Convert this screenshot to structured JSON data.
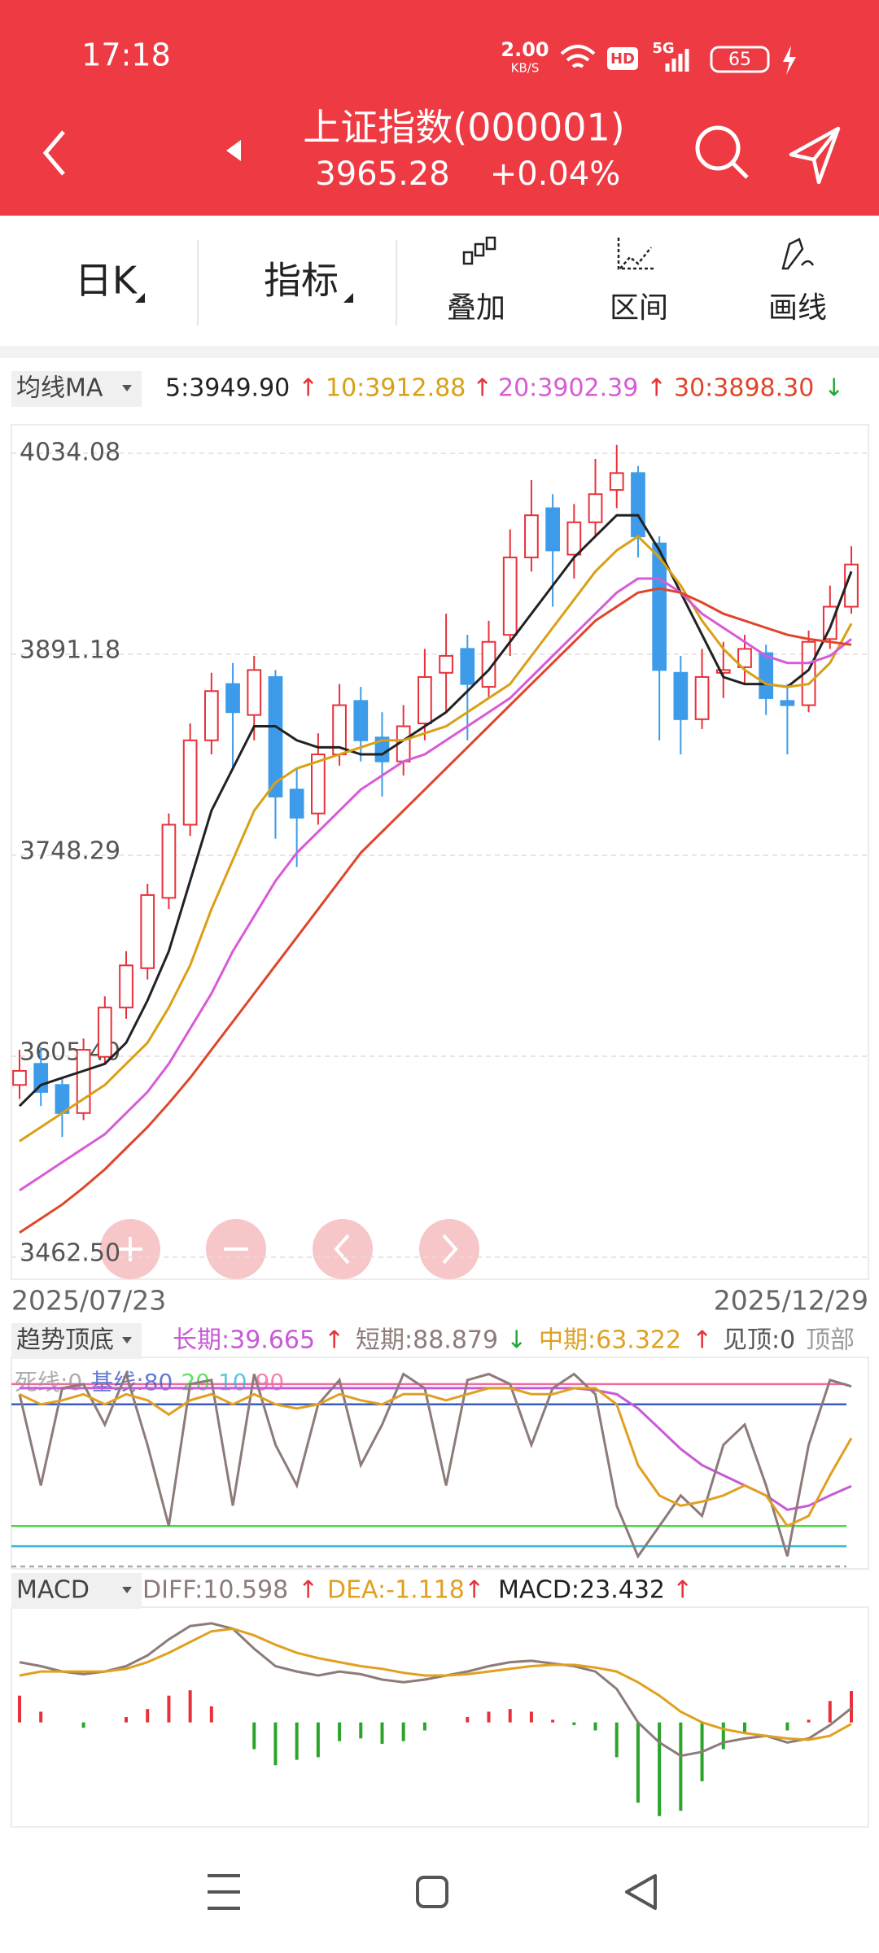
{
  "header": {
    "time": "17:18",
    "net_speed": "2.00",
    "net_unit": "KB/S",
    "hd": "HD",
    "network": "5G",
    "battery": "65",
    "title": "上证指数(000001)",
    "price": "3965.28",
    "change": "+0.04%"
  },
  "toolbar": {
    "tabs": [
      "日K",
      "指标",
      "叠加",
      "区间",
      "画线"
    ]
  },
  "chart_data": [
    {
      "type": "candlestick",
      "legend_title": "均线MA",
      "x_start": "2025/07/23",
      "x_end": "2025/12/29",
      "ylim": [
        3462.5,
        4034.08
      ],
      "yticks": [
        4034.08,
        3891.18,
        3748.29,
        {
          "value": 3605.4,
          "label": "3605.40"
        },
        {
          "value": 3462.5,
          "label": "3462.50"
        }
      ],
      "grid": true,
      "up_color": "#e8313a",
      "down_color": "#3d9be9",
      "candles": [
        [
          3585,
          3595,
          3610,
          3575
        ],
        [
          3600,
          3580,
          3612,
          3570
        ],
        [
          3585,
          3565,
          3590,
          3548
        ],
        [
          3565,
          3610,
          3618,
          3560
        ],
        [
          3605,
          3640,
          3648,
          3600
        ],
        [
          3640,
          3670,
          3680,
          3632
        ],
        [
          3668,
          3720,
          3728,
          3660
        ],
        [
          3718,
          3770,
          3778,
          3710
        ],
        [
          3770,
          3830,
          3842,
          3762
        ],
        [
          3830,
          3865,
          3878,
          3820
        ],
        [
          3870,
          3850,
          3885,
          3810
        ],
        [
          3848,
          3880,
          3890,
          3830
        ],
        [
          3875,
          3790,
          3880,
          3760
        ],
        [
          3795,
          3775,
          3810,
          3740
        ],
        [
          3778,
          3820,
          3835,
          3770
        ],
        [
          3820,
          3855,
          3870,
          3812
        ],
        [
          3858,
          3830,
          3868,
          3815
        ],
        [
          3832,
          3815,
          3850,
          3790
        ],
        [
          3815,
          3840,
          3855,
          3805
        ],
        [
          3842,
          3875,
          3895,
          3830
        ],
        [
          3878,
          3890,
          3920,
          3850
        ],
        [
          3895,
          3870,
          3905,
          3830
        ],
        [
          3868,
          3900,
          3915,
          3860
        ],
        [
          3905,
          3960,
          3980,
          3890
        ],
        [
          3960,
          3990,
          4015,
          3950
        ],
        [
          3995,
          3965,
          4005,
          3925
        ],
        [
          3962,
          3985,
          3998,
          3945
        ],
        [
          3985,
          4005,
          4030,
          3975
        ],
        [
          4008,
          4020,
          4040,
          3995
        ],
        [
          4020,
          3975,
          4025,
          3960
        ],
        [
          3970,
          3880,
          3975,
          3830
        ],
        [
          3878,
          3845,
          3890,
          3820
        ],
        [
          3845,
          3875,
          3895,
          3838
        ],
        [
          3878,
          3880,
          3900,
          3860
        ],
        [
          3882,
          3895,
          3905,
          3870
        ],
        [
          3892,
          3860,
          3898,
          3848
        ],
        [
          3858,
          3855,
          3870,
          3820
        ],
        [
          3855,
          3900,
          3908,
          3850
        ],
        [
          3902,
          3925,
          3940,
          3895
        ],
        [
          3925,
          3955,
          3968,
          3920
        ]
      ],
      "series": [
        {
          "name": "5:3949.90",
          "trend": "↑",
          "trend_color": "#e8313a",
          "color": "#222222",
          "values": [
            3570,
            3585,
            3590,
            3595,
            3600,
            3615,
            3645,
            3680,
            3730,
            3780,
            3810,
            3840,
            3840,
            3830,
            3825,
            3825,
            3820,
            3820,
            3830,
            3840,
            3850,
            3865,
            3880,
            3900,
            3920,
            3940,
            3960,
            3975,
            3990,
            3990,
            3965,
            3935,
            3905,
            3875,
            3870,
            3870,
            3868,
            3880,
            3910,
            3950
          ]
        },
        {
          "name": "10:3912.88",
          "trend": "↑",
          "trend_color": "#e8313a",
          "color": "#d9a016",
          "values": [
            3545,
            3555,
            3565,
            3575,
            3585,
            3600,
            3615,
            3640,
            3670,
            3710,
            3745,
            3780,
            3800,
            3810,
            3815,
            3820,
            3825,
            3830,
            3830,
            3835,
            3840,
            3850,
            3860,
            3870,
            3890,
            3910,
            3930,
            3950,
            3965,
            3975,
            3960,
            3940,
            3915,
            3895,
            3880,
            3870,
            3868,
            3870,
            3885,
            3913
          ]
        },
        {
          "name": "20:3902.39",
          "trend": "↑",
          "trend_color": "#e8313a",
          "color": "#d85ad8",
          "values": [
            3510,
            3520,
            3530,
            3540,
            3550,
            3565,
            3580,
            3600,
            3625,
            3650,
            3680,
            3705,
            3730,
            3750,
            3765,
            3780,
            3795,
            3805,
            3815,
            3820,
            3830,
            3840,
            3850,
            3860,
            3875,
            3890,
            3905,
            3920,
            3935,
            3945,
            3945,
            3935,
            3920,
            3910,
            3900,
            3890,
            3885,
            3885,
            3890,
            3902
          ]
        },
        {
          "name": "30:3898.30",
          "trend": "↓",
          "trend_color": "#22a83a",
          "color": "#e0452b",
          "values": [
            3480,
            3490,
            3500,
            3512,
            3525,
            3540,
            3555,
            3572,
            3590,
            3610,
            3630,
            3650,
            3670,
            3690,
            3710,
            3730,
            3750,
            3765,
            3780,
            3795,
            3810,
            3825,
            3840,
            3855,
            3870,
            3885,
            3900,
            3915,
            3925,
            3935,
            3938,
            3935,
            3928,
            3920,
            3915,
            3910,
            3905,
            3902,
            3900,
            3898
          ]
        }
      ]
    },
    {
      "type": "line",
      "legend_title": "趋势顶底",
      "ylim": [
        0,
        100
      ],
      "series": [
        {
          "name": "长期:39.665",
          "trend": "↑",
          "trend_color": "#e8313a",
          "color": "#c75ad6",
          "values": [
            88,
            88,
            88,
            88,
            88,
            88,
            88,
            88,
            88,
            88,
            88,
            88,
            88,
            88,
            88,
            88,
            88,
            88,
            88,
            88,
            88,
            88,
            88,
            88,
            88,
            88,
            88,
            87,
            85,
            78,
            68,
            58,
            50,
            45,
            40,
            35,
            28,
            30,
            35,
            39.665
          ]
        },
        {
          "name": "短期:88.879",
          "trend": "↓",
          "trend_color": "#22a83a",
          "color": "#8c7b78",
          "values": [
            85,
            40,
            88,
            90,
            70,
            95,
            60,
            20,
            90,
            92,
            30,
            95,
            60,
            40,
            80,
            92,
            50,
            70,
            95,
            88,
            40,
            92,
            95,
            90,
            60,
            88,
            95,
            85,
            30,
            5,
            20,
            35,
            25,
            60,
            70,
            40,
            5,
            60,
            92,
            88.879
          ]
        },
        {
          "name": "中期:63.322",
          "trend": "↑",
          "trend_color": "#e8313a",
          "color": "#e0a020",
          "values": [
            85,
            80,
            82,
            85,
            80,
            85,
            82,
            75,
            82,
            85,
            80,
            85,
            80,
            78,
            80,
            85,
            82,
            80,
            85,
            85,
            82,
            85,
            88,
            88,
            85,
            85,
            88,
            88,
            80,
            50,
            35,
            30,
            32,
            35,
            40,
            35,
            20,
            25,
            45,
            63.322
          ]
        }
      ],
      "extra_labels": [
        {
          "text": "见顶:0",
          "color": "#555555"
        },
        {
          "text": "顶部",
          "color": "#9a9a9a"
        }
      ],
      "ref_lines": [
        {
          "value": 90,
          "color": "#f06aa0"
        },
        {
          "value": 80,
          "color": "#3a5cc5"
        },
        {
          "value": 20,
          "color": "#3ddc3d"
        },
        {
          "value": 10,
          "color": "#36b7d8"
        },
        {
          "value": 0,
          "color": "#aaaaaa"
        }
      ],
      "ref_label": [
        {
          "text": "死线:0",
          "color": "#999999"
        },
        {
          "text": "基线:80",
          "color": "#3a5cc5"
        },
        {
          "text": "20",
          "color": "#3ddc3d"
        },
        {
          "text": "10",
          "color": "#36b7d8"
        },
        {
          "text": "90",
          "color": "#f06aa0"
        }
      ]
    },
    {
      "type": "macd",
      "legend_title": "MACD",
      "ylim": [
        -75,
        80
      ],
      "series": [
        {
          "name": "DIFF:10.598",
          "trend": "↑",
          "trend_color": "#e8313a",
          "color": "#8c7b78",
          "values": [
            45,
            42,
            38,
            36,
            38,
            42,
            50,
            62,
            72,
            74,
            70,
            55,
            42,
            38,
            35,
            38,
            36,
            32,
            30,
            32,
            35,
            38,
            42,
            45,
            46,
            44,
            42,
            38,
            25,
            0,
            -15,
            -25,
            -22,
            -15,
            -12,
            -10,
            -15,
            -12,
            -2,
            10.598
          ]
        },
        {
          "name": "DEA:-1.118",
          "trend": "↑",
          "trend_color": "#e8313a",
          "color": "#e0a020",
          "values": [
            35,
            38,
            38,
            38,
            38,
            40,
            45,
            52,
            60,
            68,
            70,
            65,
            58,
            52,
            48,
            45,
            42,
            40,
            37,
            35,
            35,
            36,
            38,
            40,
            42,
            43,
            43,
            41,
            38,
            30,
            20,
            8,
            0,
            -5,
            -8,
            -10,
            -12,
            -13,
            -10,
            -1.118
          ]
        }
      ],
      "bars": {
        "name": "MACD:23.432",
        "trend": "↑",
        "trend_color": "#e8313a",
        "up_color": "#e8313a",
        "down_color": "#2aa52a",
        "values": [
          20,
          8,
          0,
          -4,
          0,
          4,
          10,
          20,
          24,
          12,
          0,
          -20,
          -32,
          -28,
          -26,
          -14,
          -12,
          -16,
          -14,
          -6,
          0,
          4,
          8,
          10,
          8,
          2,
          -2,
          -6,
          -26,
          -60,
          -70,
          -66,
          -44,
          -20,
          -8,
          0,
          -6,
          2,
          16,
          23.432
        ]
      }
    }
  ]
}
